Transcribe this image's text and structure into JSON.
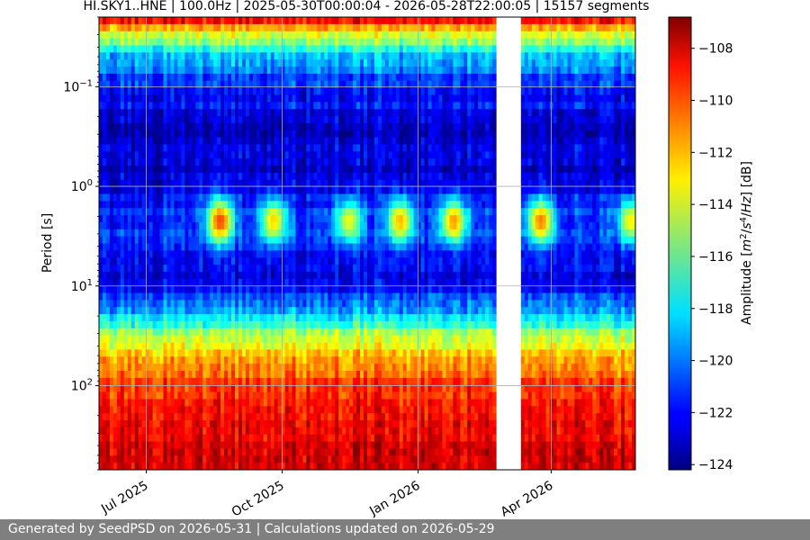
{
  "chart_data": {
    "type": "heatmap",
    "title": "HI.SKY1..HNE | 100.0Hz | 2025-05-30T00:00:04 - 2026-05-28T22:00:05 | 15157 segments",
    "xlabel": "",
    "ylabel": "Period [s]",
    "x_range": [
      "2025-05-30",
      "2026-05-28"
    ],
    "x_ticks": [
      {
        "date": "2025-07-01",
        "label": "Jul 2025"
      },
      {
        "date": "2025-10-01",
        "label": "Oct 2025"
      },
      {
        "date": "2026-01-01",
        "label": "Jan 2026"
      },
      {
        "date": "2026-04-01",
        "label": "Apr 2026"
      }
    ],
    "y_scale": "log",
    "y_inverted": true,
    "y_range": [
      0.02,
      700
    ],
    "y_ticks": [
      {
        "value": 0.1,
        "base": "10",
        "exp": "−1"
      },
      {
        "value": 1,
        "base": "10",
        "exp": "0"
      },
      {
        "value": 10,
        "base": "10",
        "exp": "1"
      },
      {
        "value": 100,
        "base": "10",
        "exp": "2"
      }
    ],
    "grid": true,
    "colormap": "jet",
    "colorbar": {
      "label_parts": [
        "Amplitude [",
        "m",
        "2",
        "/",
        "s",
        "4",
        "/",
        "Hz",
        "] [dB]"
      ],
      "range": [
        -124.2,
        -106.8
      ],
      "ticks": [
        "-108",
        "-110",
        "-112",
        "-114",
        "-116",
        "-118",
        "-120",
        "-122",
        "-124"
      ]
    },
    "data_gap": {
      "start": "2026-02-22",
      "end": "2026-03-11"
    },
    "amplitude_profile": [
      {
        "period": 0.02,
        "db": -108
      },
      {
        "period": 0.03,
        "db": -114
      },
      {
        "period": 0.05,
        "db": -119
      },
      {
        "period": 0.1,
        "db": -121.5
      },
      {
        "period": 0.3,
        "db": -123
      },
      {
        "period": 1,
        "db": -122.5
      },
      {
        "period": 2,
        "db": -121
      },
      {
        "period": 3,
        "db": -121
      },
      {
        "period": 5,
        "db": -122.5
      },
      {
        "period": 10,
        "db": -122
      },
      {
        "period": 20,
        "db": -118.5
      },
      {
        "period": 30,
        "db": -115
      },
      {
        "period": 50,
        "db": -112
      },
      {
        "period": 100,
        "db": -110
      },
      {
        "period": 300,
        "db": -108.5
      },
      {
        "period": 700,
        "db": -108
      }
    ],
    "microseism_events": [
      {
        "date": "2025-08-20",
        "db": -110
      },
      {
        "date": "2025-09-25",
        "db": -112.5
      },
      {
        "date": "2025-11-15",
        "db": -113.5
      },
      {
        "date": "2025-12-20",
        "db": -112
      },
      {
        "date": "2026-01-25",
        "db": -111.5
      },
      {
        "date": "2026-03-25",
        "db": -111
      },
      {
        "date": "2026-05-25",
        "db": -113
      }
    ]
  },
  "footer": {
    "text": "Generated by SeedPSD on 2026-05-31 | Calculations updated on 2026-05-29"
  }
}
